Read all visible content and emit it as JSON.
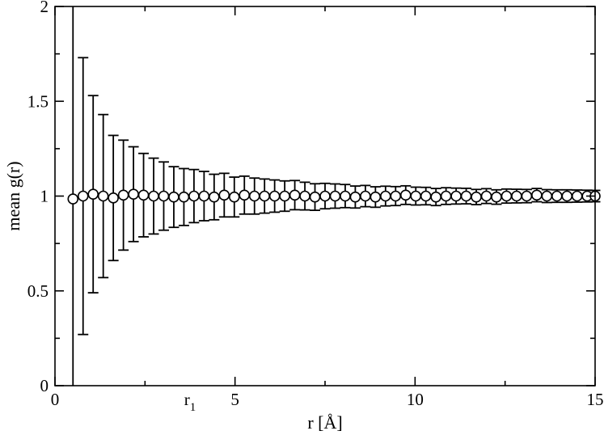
{
  "chart_data": {
    "type": "scatter",
    "title": "",
    "xlabel": "r [Å]",
    "ylabel": "mean g(r)",
    "xlim": [
      0,
      15
    ],
    "ylim": [
      0,
      2
    ],
    "xticks": [
      0,
      5,
      10,
      15
    ],
    "yticks": [
      0,
      0.5,
      1,
      1.5,
      2
    ],
    "xtick_labels": [
      "0",
      "5",
      "10",
      "15"
    ],
    "ytick_labels": [
      "0",
      "0.5",
      "1",
      "1.5",
      "2"
    ],
    "x_minor_ticks": [
      2.5,
      7.5,
      12.5
    ],
    "y_minor_ticks": [
      0.25,
      0.75,
      1.25,
      1.75
    ],
    "annotation": {
      "text": "r",
      "subscript": "1",
      "x": 3.75
    },
    "grid": false,
    "legend": "none",
    "series": [
      {
        "marker": "open-circle",
        "color": "#000000",
        "x": [
          0.5,
          0.78,
          1.06,
          1.34,
          1.62,
          1.9,
          2.18,
          2.46,
          2.74,
          3.02,
          3.3,
          3.58,
          3.86,
          4.14,
          4.42,
          4.7,
          4.98,
          5.26,
          5.54,
          5.82,
          6.1,
          6.38,
          6.66,
          6.94,
          7.22,
          7.5,
          7.78,
          8.06,
          8.34,
          8.62,
          8.9,
          9.18,
          9.46,
          9.74,
          10.02,
          10.3,
          10.58,
          10.86,
          11.14,
          11.42,
          11.7,
          11.98,
          12.26,
          12.54,
          12.82,
          13.1,
          13.38,
          13.66,
          13.94,
          14.22,
          14.5,
          14.78,
          15.0
        ],
        "y": [
          0.985,
          1.0,
          1.01,
          1.0,
          0.99,
          1.005,
          1.01,
          1.005,
          1.0,
          1.0,
          0.995,
          0.995,
          1.0,
          1.0,
          0.995,
          1.005,
          0.995,
          1.005,
          1.0,
          1.0,
          1.0,
          1.0,
          1.005,
          1.0,
          0.995,
          1.0,
          1.0,
          1.0,
          0.995,
          1.0,
          0.995,
          1.0,
          1.0,
          1.005,
          1.0,
          1.0,
          0.995,
          1.0,
          1.0,
          1.0,
          0.995,
          1.0,
          0.995,
          1.0,
          1.0,
          1.0,
          1.005,
          1.0,
          1.0,
          1.0,
          1.0,
          1.0,
          1.0
        ],
        "err": [
          1.02,
          0.73,
          0.52,
          0.43,
          0.33,
          0.29,
          0.25,
          0.22,
          0.2,
          0.18,
          0.16,
          0.15,
          0.14,
          0.13,
          0.12,
          0.115,
          0.105,
          0.1,
          0.095,
          0.09,
          0.085,
          0.08,
          0.077,
          0.073,
          0.07,
          0.067,
          0.064,
          0.061,
          0.058,
          0.056,
          0.054,
          0.052,
          0.05,
          0.049,
          0.047,
          0.046,
          0.045,
          0.044,
          0.042,
          0.041,
          0.04,
          0.039,
          0.038,
          0.037,
          0.036,
          0.035,
          0.035,
          0.034,
          0.033,
          0.033,
          0.032,
          0.031,
          0.03
        ]
      }
    ]
  }
}
